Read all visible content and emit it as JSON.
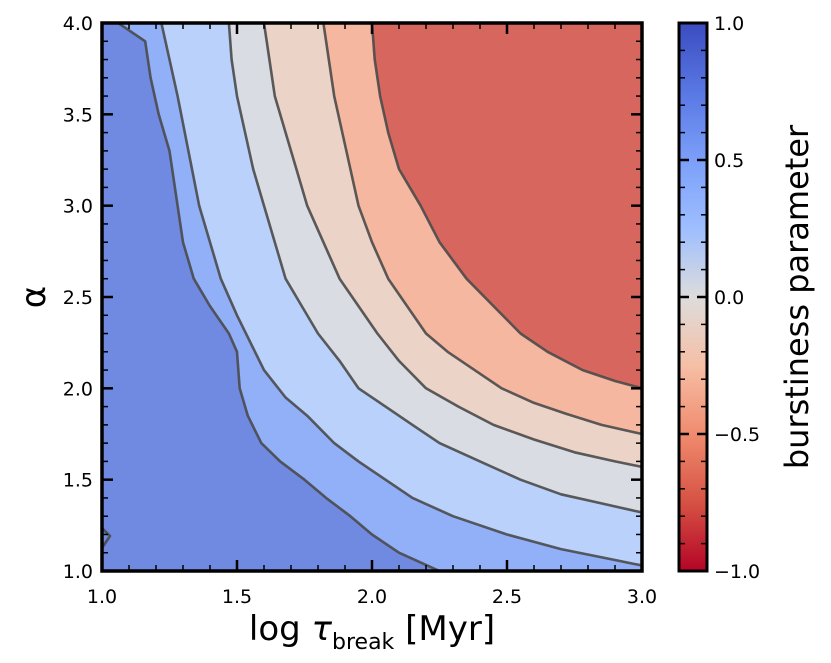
{
  "chart_data": {
    "type": "contour",
    "xlabel_main": "log ",
    "xlabel_symbol": "τ",
    "xlabel_subscript": "break",
    "xlabel_unit": " [Myr]",
    "ylabel": "α",
    "xlim": [
      1.0,
      3.0
    ],
    "ylim": [
      1.0,
      4.0
    ],
    "x_ticks": [
      1.0,
      1.5,
      2.0,
      2.5,
      3.0
    ],
    "x_tick_labels": [
      "1.0",
      "1.5",
      "2.0",
      "2.5",
      "3.0"
    ],
    "y_ticks": [
      1.0,
      1.5,
      2.0,
      2.5,
      3.0,
      3.5,
      4.0
    ],
    "y_tick_labels": [
      "1.0",
      "1.5",
      "2.0",
      "2.5",
      "3.0",
      "3.5",
      "4.0"
    ],
    "colorbar": {
      "label": "burstiness  parameter",
      "range": [
        -1.0,
        1.0
      ],
      "ticks": [
        1.0,
        0.5,
        0.0,
        -0.5,
        -1.0
      ],
      "tick_labels": [
        "1.0",
        "0.5",
        "0.0",
        "−0.5",
        "−1.0"
      ],
      "colormap": "coolwarm"
    },
    "levels": [
      0.75,
      0.5,
      0.25,
      0.0,
      -0.25,
      -0.5
    ],
    "region_colors": [
      "#6f8ae0",
      "#92b0f7",
      "#b9d1fb",
      "#dadce3",
      "#ecd3c7",
      "#f5b79f",
      "#e99276",
      "#d7665f"
    ],
    "contours": [
      {
        "level": 0.75,
        "points": [
          [
            1.06,
            4.0
          ],
          [
            1.16,
            3.9
          ],
          [
            1.18,
            3.7
          ],
          [
            1.21,
            3.5
          ],
          [
            1.25,
            3.3
          ],
          [
            1.28,
            3.0
          ],
          [
            1.3,
            2.8
          ],
          [
            1.34,
            2.6
          ],
          [
            1.4,
            2.45
          ],
          [
            1.47,
            2.3
          ],
          [
            1.5,
            2.2
          ],
          [
            1.51,
            2.0
          ],
          [
            1.54,
            1.85
          ],
          [
            1.59,
            1.7
          ],
          [
            1.66,
            1.6
          ],
          [
            1.75,
            1.5
          ],
          [
            1.83,
            1.4
          ],
          [
            1.92,
            1.3
          ],
          [
            2.0,
            1.2
          ],
          [
            2.1,
            1.1
          ],
          [
            2.25,
            1.0
          ]
        ]
      },
      {
        "level": 0.5,
        "points": [
          [
            1.22,
            4.0
          ],
          [
            1.25,
            3.8
          ],
          [
            1.28,
            3.6
          ],
          [
            1.32,
            3.3
          ],
          [
            1.36,
            3.0
          ],
          [
            1.4,
            2.8
          ],
          [
            1.44,
            2.6
          ],
          [
            1.5,
            2.4
          ],
          [
            1.55,
            2.25
          ],
          [
            1.6,
            2.1
          ],
          [
            1.68,
            1.95
          ],
          [
            1.76,
            1.85
          ],
          [
            1.86,
            1.7
          ],
          [
            1.95,
            1.6
          ],
          [
            2.05,
            1.5
          ],
          [
            2.15,
            1.4
          ],
          [
            2.3,
            1.3
          ],
          [
            2.5,
            1.2
          ],
          [
            2.7,
            1.12
          ],
          [
            2.9,
            1.06
          ],
          [
            3.0,
            1.03
          ]
        ]
      },
      {
        "level": 0.25,
        "points": [
          [
            1.47,
            4.0
          ],
          [
            1.48,
            3.8
          ],
          [
            1.5,
            3.6
          ],
          [
            1.53,
            3.4
          ],
          [
            1.56,
            3.2
          ],
          [
            1.6,
            3.0
          ],
          [
            1.64,
            2.8
          ],
          [
            1.68,
            2.6
          ],
          [
            1.74,
            2.45
          ],
          [
            1.8,
            2.3
          ],
          [
            1.88,
            2.15
          ],
          [
            1.95,
            2.0
          ],
          [
            2.05,
            1.9
          ],
          [
            2.15,
            1.8
          ],
          [
            2.25,
            1.7
          ],
          [
            2.4,
            1.6
          ],
          [
            2.55,
            1.5
          ],
          [
            2.7,
            1.42
          ],
          [
            2.85,
            1.37
          ],
          [
            3.0,
            1.32
          ]
        ]
      },
      {
        "level": 0.0,
        "points": [
          [
            1.6,
            4.0
          ],
          [
            1.62,
            3.8
          ],
          [
            1.64,
            3.6
          ],
          [
            1.68,
            3.4
          ],
          [
            1.72,
            3.2
          ],
          [
            1.76,
            3.0
          ],
          [
            1.82,
            2.8
          ],
          [
            1.88,
            2.6
          ],
          [
            1.95,
            2.45
          ],
          [
            2.02,
            2.3
          ],
          [
            2.1,
            2.15
          ],
          [
            2.2,
            2.0
          ],
          [
            2.32,
            1.9
          ],
          [
            2.45,
            1.8
          ],
          [
            2.6,
            1.72
          ],
          [
            2.75,
            1.65
          ],
          [
            2.9,
            1.6
          ],
          [
            3.0,
            1.57
          ]
        ]
      },
      {
        "level": -0.25,
        "points": [
          [
            1.82,
            4.0
          ],
          [
            1.84,
            3.8
          ],
          [
            1.86,
            3.6
          ],
          [
            1.89,
            3.4
          ],
          [
            1.92,
            3.2
          ],
          [
            1.95,
            3.0
          ],
          [
            2.0,
            2.8
          ],
          [
            2.06,
            2.6
          ],
          [
            2.13,
            2.45
          ],
          [
            2.2,
            2.3
          ],
          [
            2.28,
            2.2
          ],
          [
            2.38,
            2.1
          ],
          [
            2.48,
            2.0
          ],
          [
            2.6,
            1.92
          ],
          [
            2.72,
            1.86
          ],
          [
            2.85,
            1.8
          ],
          [
            3.0,
            1.75
          ]
        ]
      },
      {
        "level": -0.5,
        "points": [
          [
            2.0,
            4.0
          ],
          [
            2.01,
            3.8
          ],
          [
            2.03,
            3.6
          ],
          [
            2.06,
            3.4
          ],
          [
            2.1,
            3.2
          ],
          [
            2.18,
            3.0
          ],
          [
            2.25,
            2.8
          ],
          [
            2.35,
            2.6
          ],
          [
            2.45,
            2.45
          ],
          [
            2.55,
            2.3
          ],
          [
            2.65,
            2.2
          ],
          [
            2.78,
            2.1
          ],
          [
            2.9,
            2.04
          ],
          [
            3.0,
            2.0
          ]
        ]
      }
    ]
  }
}
